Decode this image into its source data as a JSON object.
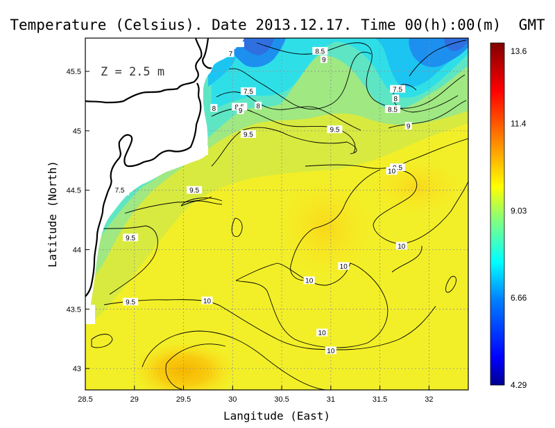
{
  "chart_data": {
    "type": "heatmap",
    "title": "Temperature (Celsius). Date 2013.12.17. Time 00(h):00(m)  GMT",
    "xlabel": "Langitude (East)",
    "ylabel": "Latitude (North)",
    "depth_label": "Z = 2.5 m",
    "xlim": [
      28.5,
      32.4
    ],
    "ylim": [
      42.82,
      45.78
    ],
    "x_ticks": [
      "28.5",
      "29",
      "29.5",
      "30",
      "30.5",
      "31",
      "31.5",
      "32"
    ],
    "x_tick_values": [
      28.5,
      29,
      29.5,
      30,
      30.5,
      31,
      31.5,
      32
    ],
    "y_ticks": [
      "43",
      "43.5",
      "44",
      "44.5",
      "45",
      "45.5"
    ],
    "y_tick_values": [
      43,
      43.5,
      44,
      44.5,
      45,
      45.5
    ],
    "grid": true,
    "colorbar": {
      "min": 4.29,
      "max": 13.6,
      "labels": [
        "13.6",
        "11.4",
        "9.03",
        "6.66",
        "4.29"
      ],
      "label_values": [
        13.6,
        11.4,
        9.03,
        6.66,
        4.29
      ]
    },
    "contour_labels": [
      {
        "text": "7",
        "lon": 29.98,
        "lat": 45.65
      },
      {
        "text": "8.5",
        "lon": 30.89,
        "lat": 45.67
      },
      {
        "text": "9",
        "lon": 30.93,
        "lat": 45.6
      },
      {
        "text": "7.5",
        "lon": 30.16,
        "lat": 45.33
      },
      {
        "text": "8.5",
        "lon": 30.07,
        "lat": 45.2
      },
      {
        "text": "9",
        "lon": 30.08,
        "lat": 45.17
      },
      {
        "text": "8",
        "lon": 30.26,
        "lat": 45.21
      },
      {
        "text": "8",
        "lon": 29.81,
        "lat": 45.19
      },
      {
        "text": "9.5",
        "lon": 30.16,
        "lat": 44.97
      },
      {
        "text": "9.5",
        "lon": 31.04,
        "lat": 45.01
      },
      {
        "text": "7.5",
        "lon": 31.68,
        "lat": 45.35
      },
      {
        "text": "8",
        "lon": 31.66,
        "lat": 45.27
      },
      {
        "text": "8.5",
        "lon": 31.63,
        "lat": 45.18
      },
      {
        "text": "9",
        "lon": 31.79,
        "lat": 45.04
      },
      {
        "text": "9.5",
        "lon": 31.68,
        "lat": 44.69
      },
      {
        "text": "10",
        "lon": 31.62,
        "lat": 44.66
      },
      {
        "text": "7.5",
        "lon": 28.85,
        "lat": 44.5
      },
      {
        "text": "9.5",
        "lon": 29.61,
        "lat": 44.5
      },
      {
        "text": "9.5",
        "lon": 28.96,
        "lat": 44.1
      },
      {
        "text": "10",
        "lon": 31.72,
        "lat": 44.03
      },
      {
        "text": "10",
        "lon": 31.13,
        "lat": 43.86
      },
      {
        "text": "10",
        "lon": 30.78,
        "lat": 43.74
      },
      {
        "text": "9.5",
        "lon": 28.96,
        "lat": 43.56
      },
      {
        "text": "10",
        "lon": 29.74,
        "lat": 43.57
      },
      {
        "text": "10",
        "lon": 30.91,
        "lat": 43.3
      },
      {
        "text": "10",
        "lon": 31.0,
        "lat": 43.15
      }
    ]
  }
}
